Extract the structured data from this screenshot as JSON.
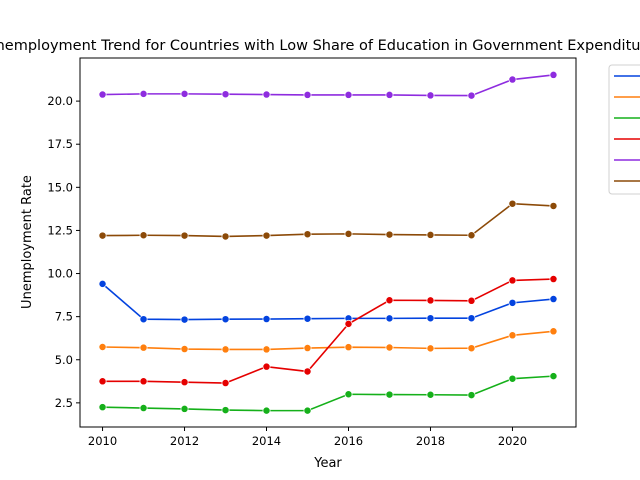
{
  "chart_data": {
    "type": "line",
    "title": "Unemployment Trend for Countries with Low Share of Education in Government Expenditure",
    "xlabel": "Year",
    "ylabel": "Unemployment Rate",
    "x": [
      2010,
      2011,
      2012,
      2013,
      2014,
      2015,
      2016,
      2017,
      2018,
      2019,
      2020,
      2021
    ],
    "xlim": [
      2009.45,
      2021.55
    ],
    "ylim": [
      1.1,
      22.5
    ],
    "xticks": [
      2010,
      2012,
      2014,
      2016,
      2018,
      2020
    ],
    "xtick_labels": [
      "2010",
      "2012",
      "2014",
      "2016",
      "2018",
      "2020"
    ],
    "yticks": [
      2.5,
      5.0,
      7.5,
      10.0,
      12.5,
      15.0,
      17.5,
      20.0
    ],
    "ytick_labels": [
      "2.5",
      "5.0",
      "7.5",
      "10.0",
      "12.5",
      "15.0",
      "17.5",
      "20.0"
    ],
    "grid": false,
    "legend": "upper right, outside axes, labels cut off",
    "series": [
      {
        "color": "#0343df",
        "values": [
          9.4,
          7.35,
          7.33,
          7.35,
          7.36,
          7.38,
          7.4,
          7.4,
          7.41,
          7.41,
          8.3,
          8.52
        ]
      },
      {
        "color": "#ff7f0e",
        "values": [
          5.74,
          5.7,
          5.62,
          5.6,
          5.6,
          5.68,
          5.73,
          5.71,
          5.66,
          5.67,
          6.42,
          6.65
        ]
      },
      {
        "color": "#15b01a",
        "values": [
          2.25,
          2.2,
          2.15,
          2.08,
          2.05,
          2.05,
          3.0,
          2.98,
          2.97,
          2.95,
          3.9,
          4.05
        ]
      },
      {
        "color": "#e50000",
        "values": [
          3.75,
          3.75,
          3.7,
          3.65,
          4.6,
          4.32,
          7.08,
          8.45,
          8.44,
          8.42,
          9.6,
          9.68
        ]
      },
      {
        "color": "#8e2cdf",
        "values": [
          20.38,
          20.42,
          20.42,
          20.4,
          20.38,
          20.36,
          20.36,
          20.36,
          20.33,
          20.32,
          21.25,
          21.52
        ]
      },
      {
        "color": "#8c4a08",
        "values": [
          12.2,
          12.22,
          12.2,
          12.15,
          12.2,
          12.28,
          12.3,
          12.26,
          12.24,
          12.22,
          14.05,
          13.92
        ]
      }
    ]
  }
}
